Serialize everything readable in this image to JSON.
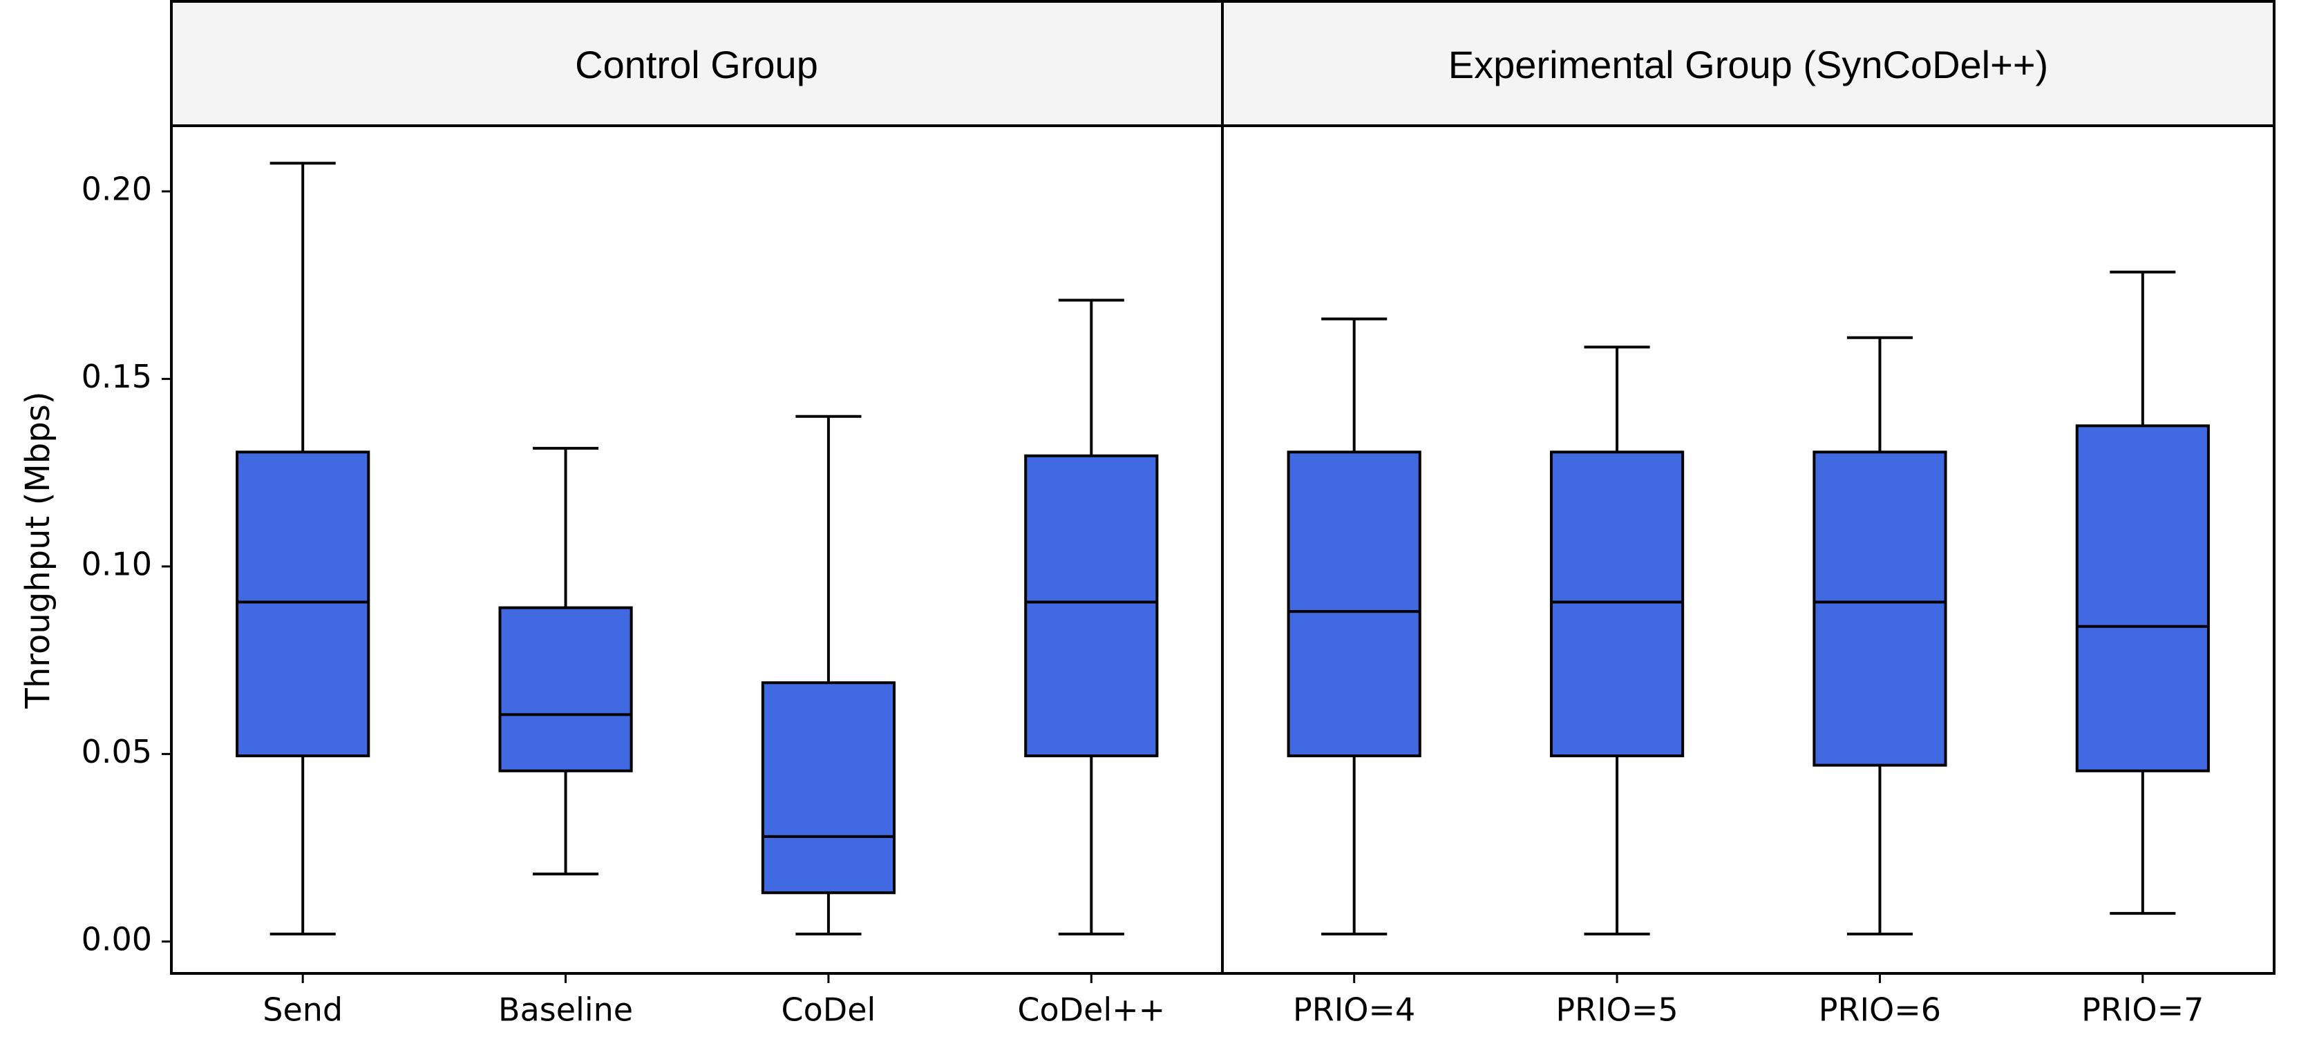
{
  "chart_data": {
    "type": "box",
    "ylabel": "Throughput (Mbps)",
    "ylim": [
      -0.0085,
      0.2175
    ],
    "yticks": [
      "0.00",
      "0.05",
      "0.10",
      "0.15",
      "0.20"
    ],
    "grid": false,
    "groups": [
      {
        "label": "Control Group",
        "categories": [
          "Send",
          "Baseline",
          "CoDel",
          "CoDel++"
        ]
      },
      {
        "label": "Experimental Group (SynCoDel++)",
        "categories": [
          "PRIO=4",
          "PRIO=5",
          "PRIO=6",
          "PRIO=7"
        ]
      }
    ],
    "box_color": "#4169e1",
    "boxes": [
      {
        "category": "Send",
        "whisker_low": 0.002,
        "q1": 0.0495,
        "median": 0.0905,
        "q3": 0.1305,
        "whisker_high": 0.2075
      },
      {
        "category": "Baseline",
        "whisker_low": 0.018,
        "q1": 0.0455,
        "median": 0.0605,
        "q3": 0.089,
        "whisker_high": 0.1315
      },
      {
        "category": "CoDel",
        "whisker_low": 0.002,
        "q1": 0.013,
        "median": 0.028,
        "q3": 0.069,
        "whisker_high": 0.14
      },
      {
        "category": "CoDel++",
        "whisker_low": 0.002,
        "q1": 0.0495,
        "median": 0.0905,
        "q3": 0.1295,
        "whisker_high": 0.171
      },
      {
        "category": "PRIO=4",
        "whisker_low": 0.002,
        "q1": 0.0495,
        "median": 0.088,
        "q3": 0.1305,
        "whisker_high": 0.166
      },
      {
        "category": "PRIO=5",
        "whisker_low": 0.002,
        "q1": 0.0495,
        "median": 0.0905,
        "q3": 0.1305,
        "whisker_high": 0.1585
      },
      {
        "category": "PRIO=6",
        "whisker_low": 0.002,
        "q1": 0.047,
        "median": 0.0905,
        "q3": 0.1305,
        "whisker_high": 0.161
      },
      {
        "category": "PRIO=7",
        "whisker_low": 0.0075,
        "q1": 0.0455,
        "median": 0.084,
        "q3": 0.1375,
        "whisker_high": 0.1785
      }
    ]
  }
}
